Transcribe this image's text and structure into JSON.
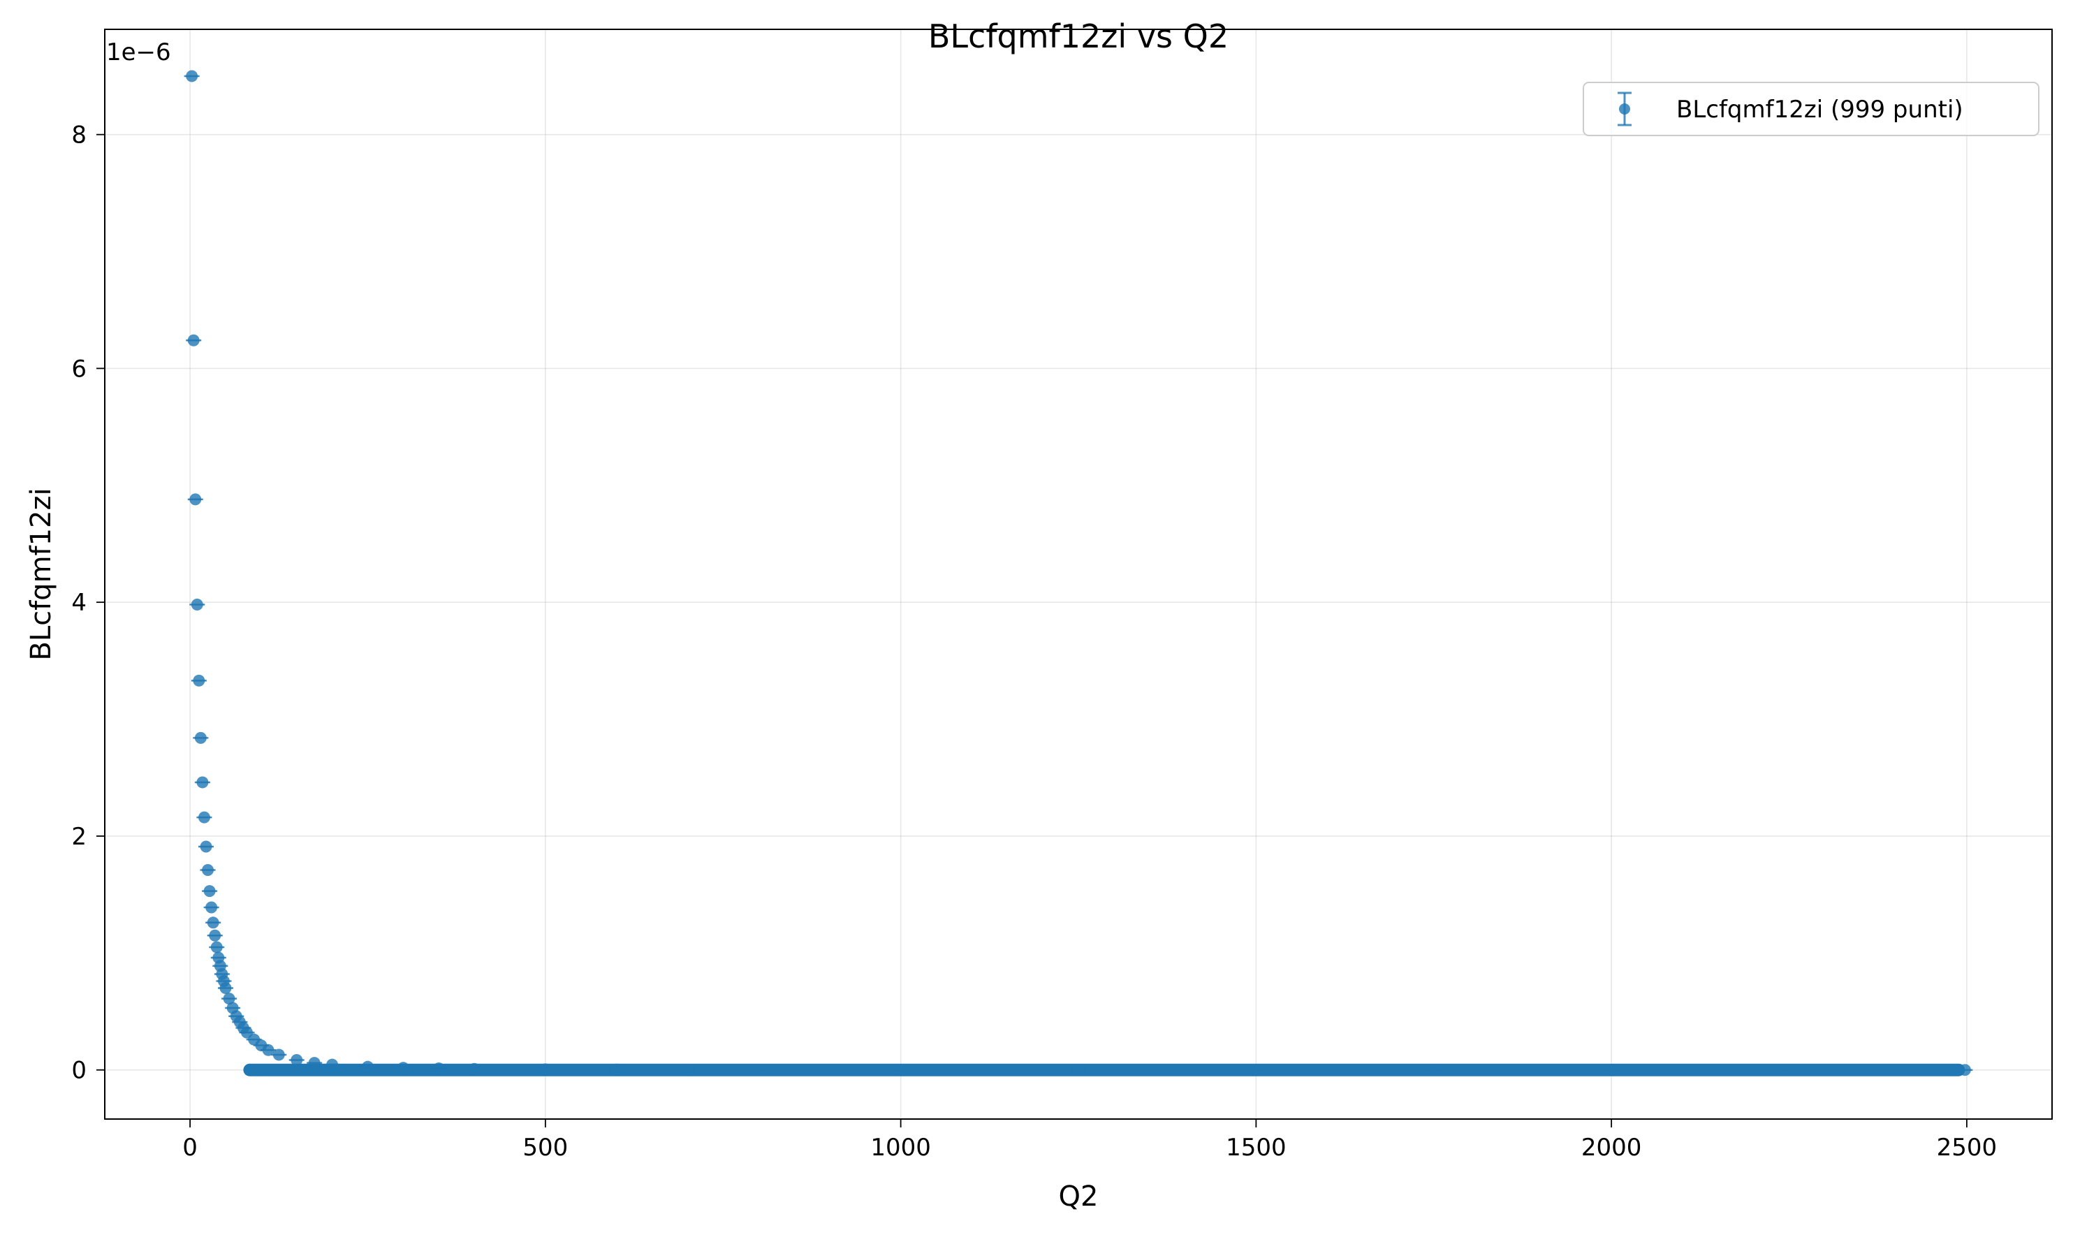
{
  "chart_data": {
    "type": "scatter",
    "title": "BLcfqmf12zi vs Q2",
    "xlabel": "Q2",
    "ylabel": "BLcfqmf12zi",
    "y_offset_label": "1e−6",
    "y_scale_factor": 1e-06,
    "xlim": [
      -120,
      2620
    ],
    "ylim": [
      -4.2e-07,
      8.9e-06
    ],
    "x_ticks": [
      0,
      500,
      1000,
      1500,
      2000,
      2500
    ],
    "x_tick_labels": [
      "0",
      "500",
      "1000",
      "1500",
      "2000",
      "2500"
    ],
    "y_ticks": [
      0,
      2e-06,
      4e-06,
      6e-06,
      8e-06
    ],
    "y_tick_labels": [
      "0",
      "2",
      "4",
      "6",
      "8"
    ],
    "grid": true,
    "legend_position": "top-right",
    "error_bars": true,
    "marker_color": "#1f77b4",
    "series": [
      {
        "name": "BLcfqmf12zi (999 punti)",
        "x": [
          2.5,
          5.0,
          7.5,
          10.0,
          12.5,
          15.0,
          17.5,
          20.0,
          22.5,
          25.0,
          27.5,
          30.0,
          32.5,
          35.0,
          37.5,
          40.0,
          42.5,
          45.0,
          47.5,
          50.0,
          55.0,
          60.0,
          65.0,
          70.0,
          75.0,
          80.0,
          90.0,
          100.0,
          110.0,
          125.0,
          150.0,
          175.0,
          200.0,
          250.0,
          300.0,
          350.0,
          400.0,
          500.0,
          600.0,
          700.0,
          800.0,
          1000.0,
          1250.0,
          1500.0,
          1750.0,
          2000.0,
          2250.0,
          2497.5
        ],
        "y": [
          8.5e-06,
          6.24e-06,
          4.88e-06,
          3.98e-06,
          3.33e-06,
          2.84e-06,
          2.46e-06,
          2.16e-06,
          1.91e-06,
          1.71e-06,
          1.53e-06,
          1.39e-06,
          1.26e-06,
          1.15e-06,
          1.05e-06,
          9.6e-07,
          8.9e-07,
          8.2e-07,
          7.6e-07,
          7e-07,
          6.1e-07,
          5.3e-07,
          4.6e-07,
          4.1e-07,
          3.6e-07,
          3.2e-07,
          2.6e-07,
          2.1e-07,
          1.7e-07,
          1.3e-07,
          8.5e-08,
          6e-08,
          4.5e-08,
          2.7e-08,
          1.8e-08,
          1.3e-08,
          9e-09,
          5e-09,
          3e-09,
          2e-09,
          1.5e-09,
          8e-10,
          4e-10,
          2.5e-10,
          1.6e-10,
          1.1e-10,
          8e-11,
          6e-11
        ]
      }
    ]
  }
}
